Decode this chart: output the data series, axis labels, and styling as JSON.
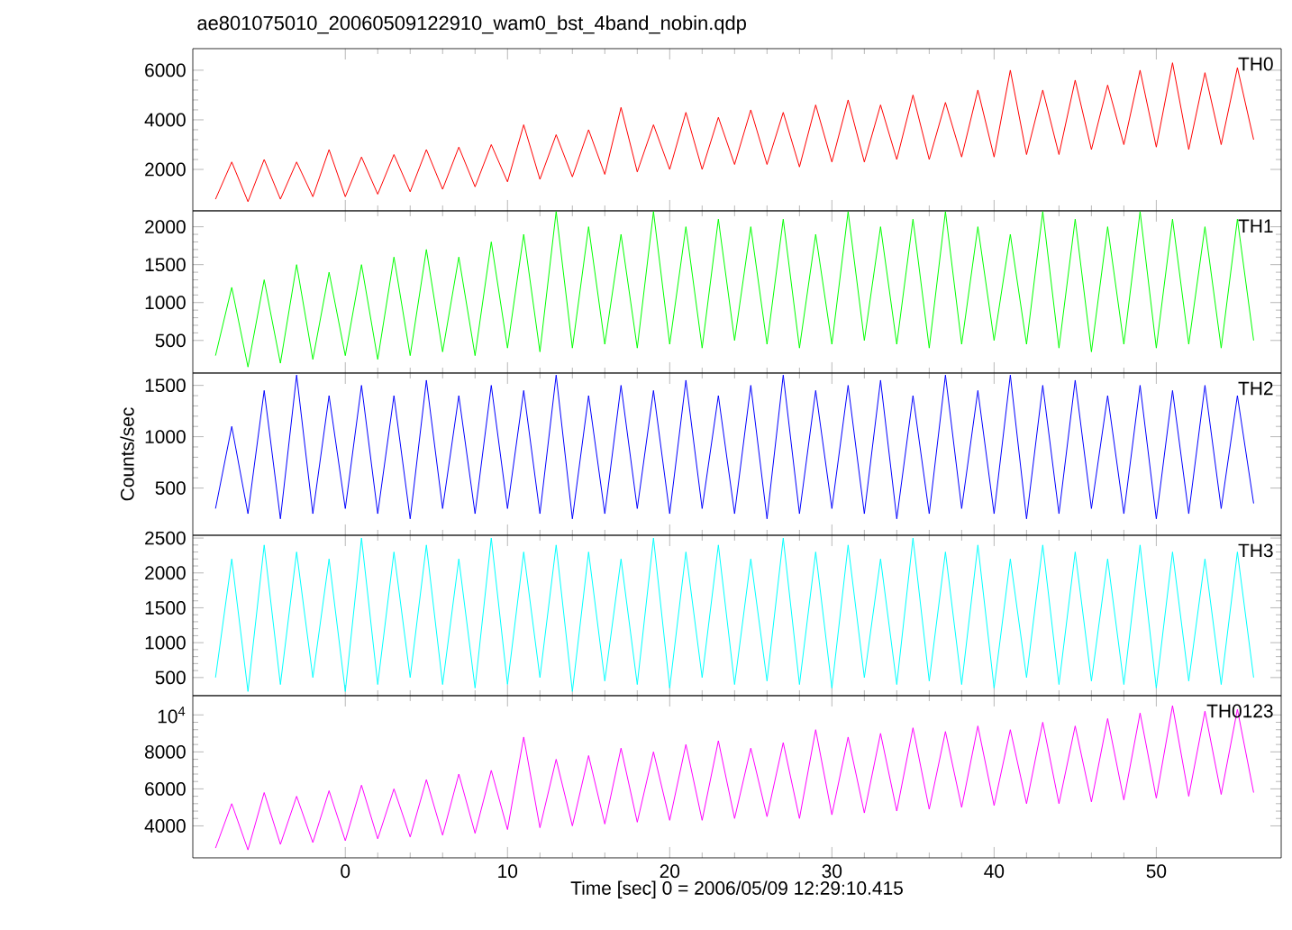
{
  "chart_data": [
    {
      "type": "line",
      "title": "ae801075010_20060509122910_wam0_bst_4band_nobin.qdp",
      "tick_labels": "y",
      "x": [
        -8,
        -7,
        -6,
        -5,
        -4,
        -3,
        -2,
        -1,
        0,
        1,
        2,
        3,
        4,
        5,
        6,
        7,
        8,
        9,
        10,
        11,
        12,
        13,
        14,
        15,
        16,
        17,
        18,
        19,
        20,
        21,
        22,
        23,
        24,
        25,
        26,
        27,
        28,
        29,
        30,
        31,
        32,
        33,
        34,
        35,
        36,
        37,
        38,
        39,
        40,
        41,
        42,
        43,
        44,
        45,
        46,
        47,
        48,
        49,
        50,
        51,
        52,
        53,
        54,
        55,
        56
      ],
      "xlim": [
        -9.4,
        57.7
      ],
      "xticks": [
        0,
        10,
        20,
        30,
        40,
        50
      ],
      "ylim": [
        330,
        6870
      ],
      "yticks": [
        2000,
        4000,
        6000
      ],
      "series": [
        {
          "name": "TH0",
          "color": "#ff0000",
          "values": [
            800,
            2300,
            700,
            2400,
            800,
            2300,
            900,
            2800,
            900,
            2500,
            1000,
            2600,
            1100,
            2800,
            1200,
            2900,
            1300,
            3000,
            1500,
            3800,
            1600,
            3400,
            1700,
            3600,
            1800,
            4500,
            1900,
            3800,
            2000,
            4300,
            2000,
            4100,
            2200,
            4400,
            2200,
            4300,
            2100,
            4600,
            2300,
            4800,
            2300,
            4600,
            2400,
            5000,
            2400,
            4700,
            2500,
            5200,
            2500,
            6000,
            2600,
            5200,
            2600,
            5600,
            2800,
            5400,
            3000,
            6000,
            2900,
            6300,
            2800,
            5900,
            3000,
            6100,
            3200
          ]
        }
      ]
    },
    {
      "type": "line",
      "tick_labels": "y",
      "x": [
        -8,
        -7,
        -6,
        -5,
        -4,
        -3,
        -2,
        -1,
        0,
        1,
        2,
        3,
        4,
        5,
        6,
        7,
        8,
        9,
        10,
        11,
        12,
        13,
        14,
        15,
        16,
        17,
        18,
        19,
        20,
        21,
        22,
        23,
        24,
        25,
        26,
        27,
        28,
        29,
        30,
        31,
        32,
        33,
        34,
        35,
        36,
        37,
        38,
        39,
        40,
        41,
        42,
        43,
        44,
        45,
        46,
        47,
        48,
        49,
        50,
        51,
        52,
        53,
        54,
        55,
        56
      ],
      "xlim": [
        -9.4,
        57.7
      ],
      "xticks": [
        0,
        10,
        20,
        30,
        40,
        50
      ],
      "ylim": [
        70,
        2210
      ],
      "yticks": [
        500,
        1000,
        1500,
        2000
      ],
      "series": [
        {
          "name": "TH1",
          "color": "#00ff00",
          "values": [
            300,
            1200,
            150,
            1300,
            200,
            1500,
            250,
            1400,
            300,
            1500,
            250,
            1600,
            300,
            1700,
            350,
            1600,
            300,
            1800,
            400,
            1900,
            350,
            2200,
            400,
            2000,
            450,
            1900,
            400,
            2200,
            450,
            2000,
            400,
            2100,
            500,
            2000,
            450,
            2100,
            400,
            1900,
            450,
            2200,
            500,
            2000,
            450,
            2100,
            400,
            2200,
            450,
            2000,
            500,
            1900,
            450,
            2200,
            400,
            2100,
            350,
            2000,
            450,
            2200,
            400,
            2100,
            450,
            2000,
            400,
            2100,
            500
          ]
        }
      ]
    },
    {
      "type": "line",
      "tick_labels": "y",
      "ylabel": "Counts/sec",
      "x": [
        -8,
        -7,
        -6,
        -5,
        -4,
        -3,
        -2,
        -1,
        0,
        1,
        2,
        3,
        4,
        5,
        6,
        7,
        8,
        9,
        10,
        11,
        12,
        13,
        14,
        15,
        16,
        17,
        18,
        19,
        20,
        21,
        22,
        23,
        24,
        25,
        26,
        27,
        28,
        29,
        30,
        31,
        32,
        33,
        34,
        35,
        36,
        37,
        38,
        39,
        40,
        41,
        42,
        43,
        44,
        45,
        46,
        47,
        48,
        49,
        50,
        51,
        52,
        53,
        54,
        55,
        56
      ],
      "xlim": [
        -9.4,
        57.7
      ],
      "xticks": [
        0,
        10,
        20,
        30,
        40,
        50
      ],
      "ylim": [
        40,
        1620
      ],
      "yticks": [
        500,
        1000,
        1500
      ],
      "series": [
        {
          "name": "TH2",
          "color": "#0000ff",
          "values": [
            300,
            1100,
            250,
            1450,
            200,
            1600,
            250,
            1400,
            300,
            1500,
            250,
            1400,
            200,
            1550,
            300,
            1400,
            250,
            1500,
            300,
            1450,
            250,
            1600,
            200,
            1400,
            250,
            1500,
            300,
            1450,
            250,
            1550,
            300,
            1400,
            250,
            1500,
            200,
            1600,
            250,
            1450,
            300,
            1500,
            250,
            1550,
            200,
            1400,
            250,
            1600,
            300,
            1450,
            250,
            1600,
            200,
            1500,
            250,
            1550,
            300,
            1400,
            250,
            1500,
            200,
            1450,
            250,
            1500,
            300,
            1400,
            350
          ]
        }
      ]
    },
    {
      "type": "line",
      "tick_labels": "y",
      "x": [
        -8,
        -7,
        -6,
        -5,
        -4,
        -3,
        -2,
        -1,
        0,
        1,
        2,
        3,
        4,
        5,
        6,
        7,
        8,
        9,
        10,
        11,
        12,
        13,
        14,
        15,
        16,
        17,
        18,
        19,
        20,
        21,
        22,
        23,
        24,
        25,
        26,
        27,
        28,
        29,
        30,
        31,
        32,
        33,
        34,
        35,
        36,
        37,
        38,
        39,
        40,
        41,
        42,
        43,
        44,
        45,
        46,
        47,
        48,
        49,
        50,
        51,
        52,
        53,
        54,
        55,
        56
      ],
      "xlim": [
        -9.4,
        57.7
      ],
      "xticks": [
        0,
        10,
        20,
        30,
        40,
        50
      ],
      "ylim": [
        240,
        2540
      ],
      "yticks": [
        500,
        1000,
        1500,
        2000,
        2500
      ],
      "series": [
        {
          "name": "TH3",
          "color": "#00ffff",
          "values": [
            500,
            2200,
            300,
            2400,
            400,
            2300,
            500,
            2200,
            300,
            2500,
            400,
            2300,
            500,
            2400,
            400,
            2200,
            350,
            2500,
            400,
            2300,
            500,
            2400,
            300,
            2300,
            450,
            2200,
            400,
            2500,
            350,
            2300,
            500,
            2400,
            400,
            2200,
            450,
            2500,
            400,
            2300,
            350,
            2400,
            500,
            2200,
            400,
            2500,
            450,
            2300,
            400,
            2400,
            350,
            2200,
            500,
            2400,
            400,
            2300,
            450,
            2200,
            400,
            2400,
            350,
            2300,
            450,
            2200,
            400,
            2300,
            500
          ]
        }
      ]
    },
    {
      "type": "line",
      "xlabel": "Time [sec] 0 = 2006/05/09 12:29:10.415",
      "x": [
        -8,
        -7,
        -6,
        -5,
        -4,
        -3,
        -2,
        -1,
        0,
        1,
        2,
        3,
        4,
        5,
        6,
        7,
        8,
        9,
        10,
        11,
        12,
        13,
        14,
        15,
        16,
        17,
        18,
        19,
        20,
        21,
        22,
        23,
        24,
        25,
        26,
        27,
        28,
        29,
        30,
        31,
        32,
        33,
        34,
        35,
        36,
        37,
        38,
        39,
        40,
        41,
        42,
        43,
        44,
        45,
        46,
        47,
        48,
        49,
        50,
        51,
        52,
        53,
        54,
        55,
        56
      ],
      "xlim": [
        -9.4,
        57.7
      ],
      "xticks": [
        0,
        10,
        20,
        30,
        40,
        50
      ],
      "ylim": [
        2270,
        11040
      ],
      "yticks": [
        4000,
        6000,
        8000,
        {
          "value": 10000,
          "label": "10$^{4}$"
        }
      ],
      "series": [
        {
          "name": "TH0123",
          "color": "#ff00ff",
          "values": [
            2800,
            5200,
            2700,
            5800,
            3000,
            5600,
            3100,
            5900,
            3200,
            6200,
            3300,
            6000,
            3400,
            6500,
            3500,
            6800,
            3600,
            7000,
            3800,
            8800,
            3900,
            7600,
            4000,
            7800,
            4100,
            8200,
            4200,
            8000,
            4300,
            8400,
            4300,
            8600,
            4400,
            8200,
            4500,
            8500,
            4400,
            9200,
            4600,
            8800,
            4700,
            9000,
            4800,
            9300,
            4900,
            9100,
            5000,
            9400,
            5100,
            9200,
            5200,
            9600,
            5200,
            9400,
            5300,
            9800,
            5400,
            10100,
            5500,
            10500,
            5600,
            10200,
            5700,
            10300,
            5800
          ]
        }
      ]
    }
  ]
}
